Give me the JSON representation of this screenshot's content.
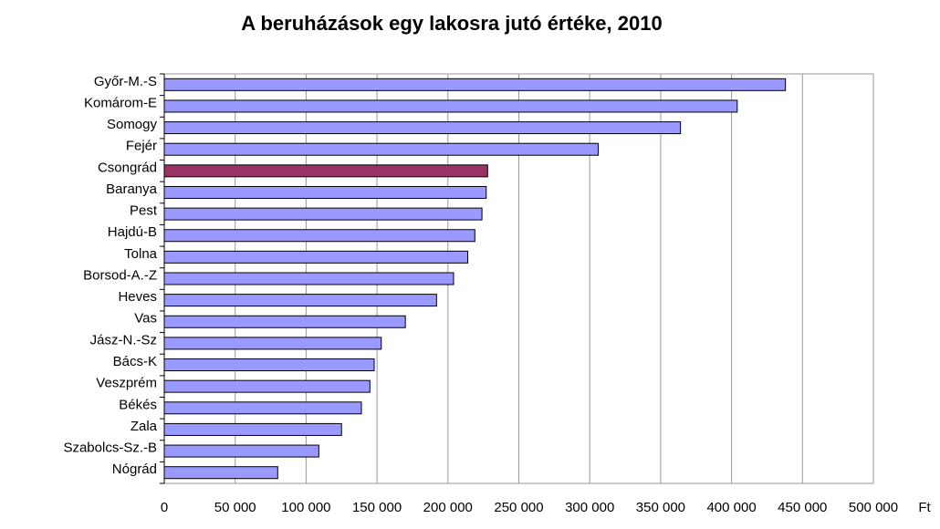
{
  "chart_data": {
    "type": "barh",
    "title": "A beruházások egy lakosra jutó értéke, 2010",
    "x_label": "Ft",
    "categories": [
      "Győr-M.-S",
      "Komárom-E",
      "Somogy",
      "Fejér",
      "Csongrád",
      "Baranya",
      "Pest",
      "Hajdú-B",
      "Tolna",
      "Borsod-A.-Z",
      "Heves",
      "Vas",
      "Jász-N.-Sz",
      "Bács-K",
      "Veszprém",
      "Békés",
      "Zala",
      "Szabolcs-Sz.-B",
      "Nógrád"
    ],
    "values": [
      438000,
      404000,
      364000,
      306000,
      228000,
      227000,
      224000,
      219000,
      214000,
      204000,
      192000,
      170000,
      153000,
      148000,
      145000,
      139000,
      125000,
      109000,
      80000
    ],
    "colors": [
      "#9999ff",
      "#9999ff",
      "#9999ff",
      "#9999ff",
      "#993366",
      "#9999ff",
      "#9999ff",
      "#9999ff",
      "#9999ff",
      "#9999ff",
      "#9999ff",
      "#9999ff",
      "#9999ff",
      "#9999ff",
      "#9999ff",
      "#9999ff",
      "#9999ff",
      "#9999ff",
      "#9999ff"
    ],
    "xlim": [
      0,
      500000
    ],
    "xticks": [
      0,
      {
        "value": 50000,
        "label": "50 000"
      },
      {
        "value": 100000,
        "label": "100 000"
      },
      {
        "value": 150000,
        "label": "150 000"
      },
      {
        "value": 200000,
        "label": "200 000"
      },
      {
        "value": 250000,
        "label": "250 000"
      },
      {
        "value": 300000,
        "label": "300 000"
      },
      {
        "value": 350000,
        "label": "350 000"
      },
      {
        "value": 400000,
        "label": "400 000"
      },
      {
        "value": 450000,
        "label": "450 000"
      },
      {
        "value": 500000,
        "label": "500 000"
      }
    ],
    "grid": true
  }
}
